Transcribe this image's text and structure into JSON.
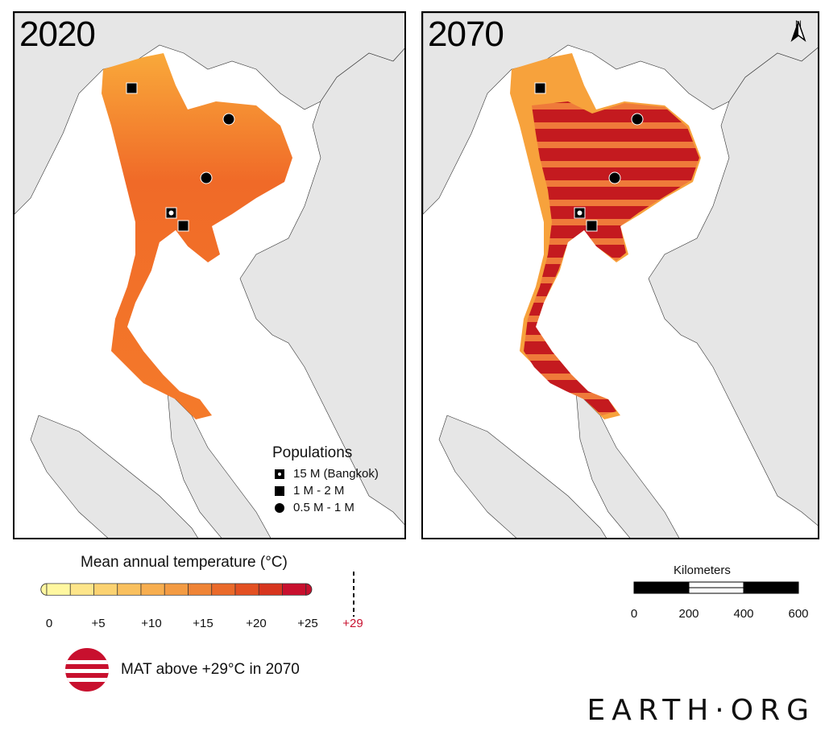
{
  "maps": [
    {
      "year": "2020"
    },
    {
      "year": "2070"
    }
  ],
  "north_label": "N",
  "populations_legend": {
    "title": "Populations",
    "items": [
      {
        "symbol": "open-square-icon",
        "label": "15 M (Bangkok)"
      },
      {
        "symbol": "square-icon",
        "label": "1 M - 2 M"
      },
      {
        "symbol": "circle-icon",
        "label": "0.5 M - 1 M"
      }
    ]
  },
  "temperature_legend": {
    "title": "Mean annual temperature (°C)",
    "ticks": [
      "0",
      "+5",
      "+10",
      "+15",
      "+20",
      "+25",
      "+29"
    ],
    "threshold_color": "#c8102e",
    "colors": [
      "#fff7a0",
      "#fde58a",
      "#fbd271",
      "#f9c05e",
      "#f7ae4f",
      "#f39b43",
      "#ef8436",
      "#ea6a2a",
      "#e35022",
      "#d7351e",
      "#c8102e"
    ]
  },
  "mat_legend": {
    "label": "MAT above +29°C in 2070"
  },
  "scale_bar": {
    "title": "Kilometers",
    "labels": [
      "0",
      "200",
      "400",
      "600"
    ]
  },
  "brand": "EARTH·ORG",
  "colors": {
    "land": "#e6e6e6",
    "thailand_2020": "#f26b2a",
    "hot_2070": "#c8102e",
    "sea": "#ffffff"
  }
}
